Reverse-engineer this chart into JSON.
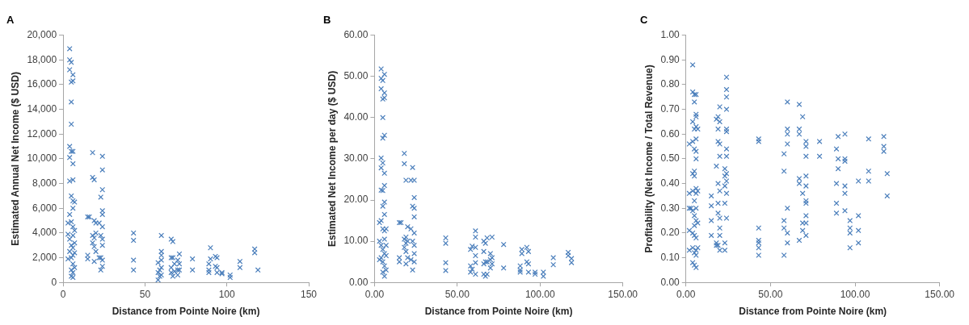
{
  "chart_data": [
    {
      "type": "scatter",
      "title": "A",
      "xlabel": "Distance from Pointe Noire (km)",
      "ylabel": "Estimated Annual Net Income ($ USD)",
      "marker": "cross",
      "grid": false,
      "legend": false,
      "xlim": [
        0,
        150
      ],
      "xticks": [
        0,
        50,
        100,
        150
      ],
      "ylim": [
        0,
        20000
      ],
      "yticks": [
        0,
        {
          "value": 2000,
          "label": "2,000"
        },
        {
          "value": 4000,
          "label": "4,000"
        },
        {
          "value": 6000,
          "label": "6,000"
        },
        {
          "value": 8000,
          "label": "8,000"
        },
        {
          "value": 10000,
          "label": "10,000"
        },
        {
          "value": 12000,
          "label": "12,000"
        },
        {
          "value": 14000,
          "label": "14,000"
        },
        {
          "value": 16000,
          "label": "16,000"
        },
        {
          "value": 18000,
          "label": "18,000"
        },
        {
          "value": 20000,
          "label": "20,000"
        }
      ],
      "series": [
        {
          "color": "#4a7ebb",
          "x": [
            3,
            3,
            3,
            4,
            4,
            4,
            4,
            4,
            4,
            4,
            4,
            4,
            5,
            5,
            5,
            5,
            5,
            5,
            5,
            5,
            5,
            5,
            5,
            6,
            6,
            6,
            6,
            6,
            6,
            6,
            6,
            6,
            6,
            6,
            6,
            6,
            6,
            7,
            7,
            7,
            7,
            7,
            15,
            15,
            15,
            16,
            18,
            18,
            18,
            18,
            19,
            19,
            19,
            19,
            19,
            20,
            20,
            20,
            22,
            22,
            23,
            23,
            23,
            23,
            24,
            24,
            24,
            24,
            24,
            24,
            24,
            24,
            24,
            24,
            43,
            43,
            43,
            43,
            58,
            58,
            58,
            59,
            59,
            60,
            60,
            60,
            60,
            60,
            60,
            66,
            66,
            66,
            66,
            67,
            67,
            67,
            68,
            68,
            70,
            70,
            70,
            71,
            71,
            71,
            79,
            79,
            89,
            89,
            89,
            90,
            90,
            93,
            93,
            94,
            94,
            94,
            97,
            97,
            102,
            102,
            108,
            108,
            117,
            117,
            119
          ],
          "values": [
            1900,
            3900,
            4800,
            18900,
            18000,
            17200,
            11000,
            10100,
            8200,
            5500,
            3500,
            2500,
            17800,
            16200,
            14600,
            12800,
            10600,
            7000,
            4900,
            3000,
            2000,
            1000,
            500,
            16800,
            16300,
            10600,
            9600,
            8300,
            6600,
            6000,
            4500,
            3800,
            2800,
            2200,
            1500,
            800,
            400,
            6500,
            4200,
            3200,
            2400,
            1200,
            5300,
            2200,
            1900,
            5300,
            10500,
            8500,
            3800,
            3200,
            8300,
            5000,
            3600,
            2900,
            1700,
            4800,
            4000,
            2500,
            4800,
            2000,
            6900,
            3800,
            2000,
            1000,
            10200,
            9100,
            7500,
            5800,
            5500,
            4500,
            3500,
            3000,
            1800,
            1300,
            4000,
            3400,
            1800,
            1000,
            1600,
            800,
            200,
            1000,
            500,
            3800,
            2500,
            2200,
            1800,
            1200,
            600,
            3500,
            2000,
            1200,
            800,
            3300,
            2000,
            500,
            1500,
            900,
            1800,
            1000,
            600,
            2300,
            1500,
            1000,
            1900,
            1000,
            1500,
            1000,
            800,
            2800,
            1900,
            2100,
            1300,
            2000,
            1200,
            800,
            800,
            700,
            600,
            400,
            1700,
            1200,
            2700,
            2400,
            1000
          ]
        }
      ]
    },
    {
      "type": "scatter",
      "title": "B",
      "xlabel": "Distance from Pointe Noire (km)",
      "ylabel": "Estimated Net Income per day ($ USD)",
      "marker": "cross",
      "grid": false,
      "legend": false,
      "xlim": [
        0,
        150
      ],
      "xticks": [
        {
          "value": 0,
          "label": "0.00"
        },
        {
          "value": 50,
          "label": "50.00"
        },
        {
          "value": 100,
          "label": "100.00"
        },
        {
          "value": 150,
          "label": "150.00"
        }
      ],
      "ylim": [
        0,
        60
      ],
      "yticks": [
        {
          "value": 0,
          "label": "0.00"
        },
        {
          "value": 10,
          "label": "10.00"
        },
        {
          "value": 20,
          "label": "20.00"
        },
        {
          "value": 30,
          "label": "30.00"
        },
        {
          "value": 40,
          "label": "40.00"
        },
        {
          "value": 50,
          "label": "50.00"
        },
        {
          "value": 60,
          "label": "60.00"
        }
      ],
      "series": [
        {
          "color": "#4a7ebb",
          "x": [
            3,
            3,
            3,
            4,
            4,
            4,
            4,
            4,
            4,
            4,
            4,
            4,
            5,
            5,
            5,
            5,
            5,
            5,
            5,
            5,
            5,
            5,
            5,
            6,
            6,
            6,
            6,
            6,
            6,
            6,
            6,
            6,
            6,
            6,
            6,
            6,
            7,
            7,
            7,
            7,
            15,
            15,
            15,
            16,
            18,
            18,
            18,
            18,
            19,
            19,
            19,
            19,
            19,
            20,
            20,
            20,
            22,
            22,
            22,
            23,
            23,
            23,
            23,
            24,
            24,
            24,
            24,
            24,
            24,
            24,
            24,
            43,
            43,
            43,
            43,
            58,
            58,
            58,
            59,
            59,
            61,
            61,
            61,
            61,
            61,
            61,
            66,
            66,
            66,
            66,
            67,
            67,
            67,
            68,
            68,
            68,
            70,
            70,
            70,
            71,
            71,
            71,
            78,
            78,
            88,
            88,
            88,
            89,
            89,
            92,
            92,
            93,
            93,
            93,
            97,
            97,
            102,
            102,
            108,
            108,
            117,
            117,
            119,
            119
          ],
          "values": [
            5.5,
            10.0,
            14.5,
            51.8,
            49.5,
            47.0,
            30.2,
            27.8,
            22.4,
            15.0,
            9.0,
            6.0,
            49.0,
            44.5,
            40.0,
            35.0,
            29.0,
            22.3,
            18.5,
            13.0,
            8.0,
            5.0,
            2.5,
            50.5,
            46.0,
            44.8,
            35.7,
            26.5,
            23.5,
            19.5,
            16.5,
            12.5,
            10.5,
            7.0,
            4.0,
            1.5,
            13.0,
            9.0,
            6.5,
            3.0,
            14.5,
            6.0,
            5.0,
            14.5,
            31.3,
            28.8,
            10.5,
            8.5,
            24.8,
            11.0,
            9.5,
            7.5,
            4.5,
            13.5,
            10.0,
            6.0,
            24.8,
            13.0,
            5.5,
            27.9,
            18.5,
            10.0,
            3.0,
            24.8,
            20.6,
            18.0,
            15.9,
            12.0,
            9.0,
            7.0,
            5.0,
            10.8,
            9.5,
            4.8,
            2.9,
            8.0,
            4.0,
            2.5,
            8.8,
            3.2,
            12.5,
            11.0,
            8.5,
            6.5,
            4.8,
            2.0,
            10.0,
            7.5,
            4.5,
            2.0,
            9.5,
            5.0,
            1.5,
            10.8,
            5.0,
            2.0,
            7.0,
            5.5,
            3.5,
            11.0,
            6.0,
            4.5,
            9.2,
            3.5,
            4.0,
            3.0,
            2.5,
            8.0,
            7.0,
            8.5,
            5.0,
            7.5,
            4.5,
            2.5,
            2.5,
            2.0,
            2.5,
            1.5,
            6.0,
            4.3,
            7.3,
            6.5,
            5.8,
            4.8
          ]
        }
      ]
    },
    {
      "type": "scatter",
      "title": "C",
      "xlabel": "Distance from Pointe Noire (km)",
      "ylabel": "Profitability (Net Income / Total Revenue)",
      "marker": "cross",
      "grid": false,
      "legend": false,
      "xlim": [
        0,
        150
      ],
      "xticks": [
        {
          "value": 0,
          "label": "0.00"
        },
        {
          "value": 50,
          "label": "50.00"
        },
        {
          "value": 100,
          "label": "100.00"
        },
        {
          "value": 150,
          "label": "150.00"
        }
      ],
      "ylim": [
        0,
        1
      ],
      "yticks": [
        {
          "value": 0,
          "label": "0.00"
        },
        {
          "value": 0.1,
          "label": "0.10"
        },
        {
          "value": 0.2,
          "label": "0.20"
        },
        {
          "value": 0.3,
          "label": "0.30"
        },
        {
          "value": 0.4,
          "label": "0.40"
        },
        {
          "value": 0.5,
          "label": "0.50"
        },
        {
          "value": 0.6,
          "label": "0.60"
        },
        {
          "value": 0.7,
          "label": "0.70"
        },
        {
          "value": 0.8,
          "label": "0.80"
        },
        {
          "value": 0.9,
          "label": "0.90"
        },
        {
          "value": 1,
          "label": "1.00"
        }
      ],
      "series": [
        {
          "color": "#4a7ebb",
          "x": [
            2,
            2,
            2,
            2,
            2,
            3,
            4,
            4,
            4,
            4,
            4,
            4,
            4,
            4,
            4,
            4,
            5,
            5,
            5,
            5,
            5,
            5,
            5,
            5,
            5,
            5,
            5,
            5,
            6,
            6,
            6,
            6,
            6,
            6,
            6,
            6,
            6,
            6,
            6,
            6,
            6,
            6,
            6,
            7,
            7,
            7,
            7,
            15,
            15,
            15,
            15,
            18,
            18,
            18,
            18,
            19,
            19,
            19,
            19,
            19,
            19,
            19,
            20,
            20,
            20,
            20,
            20,
            20,
            20,
            20,
            20,
            23,
            23,
            23,
            23,
            23,
            23,
            24,
            24,
            24,
            24,
            24,
            24,
            24,
            24,
            24,
            24,
            24,
            24,
            43,
            43,
            43,
            43,
            43,
            43,
            43,
            58,
            58,
            58,
            58,
            58,
            60,
            60,
            60,
            60,
            60,
            60,
            60,
            67,
            67,
            67,
            67,
            67,
            67,
            69,
            69,
            69,
            69,
            71,
            71,
            71,
            71,
            71,
            71,
            71,
            71,
            71,
            71,
            79,
            79,
            89,
            89,
            89,
            89,
            90,
            90,
            90,
            94,
            94,
            94,
            94,
            94,
            94,
            97,
            97,
            97,
            97,
            102,
            102,
            102,
            102,
            108,
            108,
            108,
            117,
            117,
            117,
            119,
            119
          ],
          "values": [
            0.56,
            0.36,
            0.3,
            0.21,
            0.13,
            0.3,
            0.88,
            0.77,
            0.65,
            0.57,
            0.44,
            0.37,
            0.29,
            0.2,
            0.14,
            0.08,
            0.76,
            0.73,
            0.62,
            0.54,
            0.45,
            0.43,
            0.33,
            0.27,
            0.23,
            0.19,
            0.12,
            0.07,
            0.76,
            0.68,
            0.67,
            0.63,
            0.58,
            0.53,
            0.5,
            0.38,
            0.36,
            0.3,
            0.25,
            0.18,
            0.13,
            0.11,
            0.06,
            0.62,
            0.37,
            0.24,
            0.14,
            0.35,
            0.31,
            0.25,
            0.19,
            0.66,
            0.47,
            0.16,
            0.15,
            0.67,
            0.62,
            0.57,
            0.4,
            0.32,
            0.28,
            0.15,
            0.71,
            0.65,
            0.56,
            0.51,
            0.37,
            0.26,
            0.22,
            0.19,
            0.13,
            0.46,
            0.43,
            0.39,
            0.32,
            0.16,
            0.13,
            0.83,
            0.78,
            0.75,
            0.7,
            0.62,
            0.61,
            0.54,
            0.51,
            0.44,
            0.41,
            0.36,
            0.26,
            0.58,
            0.57,
            0.22,
            0.17,
            0.16,
            0.14,
            0.11,
            0.52,
            0.45,
            0.25,
            0.22,
            0.11,
            0.73,
            0.62,
            0.6,
            0.56,
            0.3,
            0.2,
            0.16,
            0.72,
            0.62,
            0.6,
            0.42,
            0.4,
            0.17,
            0.67,
            0.36,
            0.24,
            0.21,
            0.57,
            0.55,
            0.51,
            0.43,
            0.39,
            0.33,
            0.32,
            0.27,
            0.24,
            0.19,
            0.57,
            0.51,
            0.54,
            0.4,
            0.32,
            0.28,
            0.59,
            0.5,
            0.46,
            0.6,
            0.5,
            0.49,
            0.39,
            0.36,
            0.29,
            0.25,
            0.22,
            0.2,
            0.14,
            0.41,
            0.27,
            0.21,
            0.16,
            0.58,
            0.45,
            0.41,
            0.59,
            0.55,
            0.53,
            0.44,
            0.35
          ]
        }
      ]
    }
  ]
}
